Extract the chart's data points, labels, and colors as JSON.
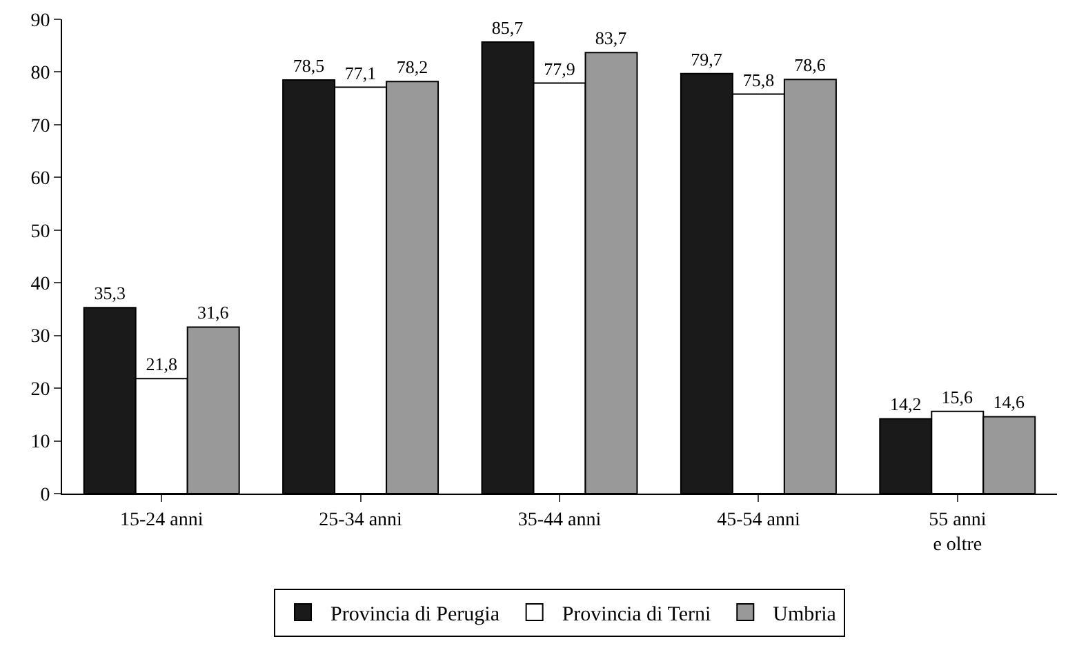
{
  "chart_data": {
    "type": "bar",
    "categories": [
      "15-24 anni",
      "25-34 anni",
      "35-44 anni",
      "45-54 anni",
      "55 anni\ne oltre"
    ],
    "series": [
      {
        "name": "Provincia di Perugia",
        "color": "#1a1a1a",
        "values": [
          35.3,
          78.5,
          85.7,
          79.7,
          14.2
        ],
        "value_labels": [
          "35,3",
          "78,5",
          "85,7",
          "79,7",
          "14,2"
        ]
      },
      {
        "name": "Provincia di Terni",
        "color": "#ffffff",
        "values": [
          21.8,
          77.1,
          77.9,
          75.8,
          15.6
        ],
        "value_labels": [
          "21,8",
          "77,1",
          "77,9",
          "75,8",
          "15,6"
        ]
      },
      {
        "name": "Umbria",
        "color": "#999999",
        "values": [
          31.6,
          78.2,
          83.7,
          78.6,
          14.6
        ],
        "value_labels": [
          "31,6",
          "78,2",
          "83,7",
          "78,6",
          "14,6"
        ]
      }
    ],
    "ylim": [
      0,
      90
    ],
    "yticks": [
      0,
      10,
      20,
      30,
      40,
      50,
      60,
      70,
      80,
      90
    ],
    "legend": "bottom"
  }
}
